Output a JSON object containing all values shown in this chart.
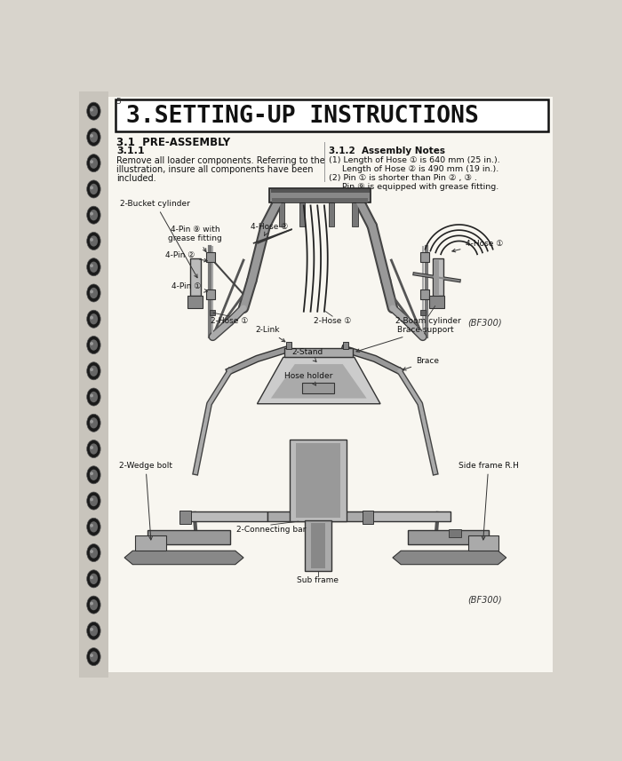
{
  "page_number": "5",
  "title": "3.SETTING-UP INSTRUCTIONS",
  "section": "3.1  PRE-ASSEMBLY",
  "subsection": "3.1.1",
  "body_text_left": [
    "Remove all loader components. Referring to the",
    "illustration, insure all components have been",
    "included."
  ],
  "notes_title": "3.1.2  Assembly Notes",
  "notes": [
    "(1) Length of Hose ① is 640 mm (25 in.).",
    "     Length of Hose ② is 490 mm (19 in.).",
    "(2) Pin ① is shorter than Pin ② , ③ .",
    "     Pin ⑨ is equipped with grease fitting."
  ],
  "diagram1_caption": "(BF300)",
  "diagram2_caption": "(BF300)",
  "bg_color": "#d8d4cc",
  "page_bg": "#f8f6f0",
  "border_color": "#111111",
  "spine_color": "#1a1a1a",
  "text_color": "#111111",
  "gray_mid": "#888888",
  "gray_dark": "#444444",
  "gray_light": "#cccccc"
}
